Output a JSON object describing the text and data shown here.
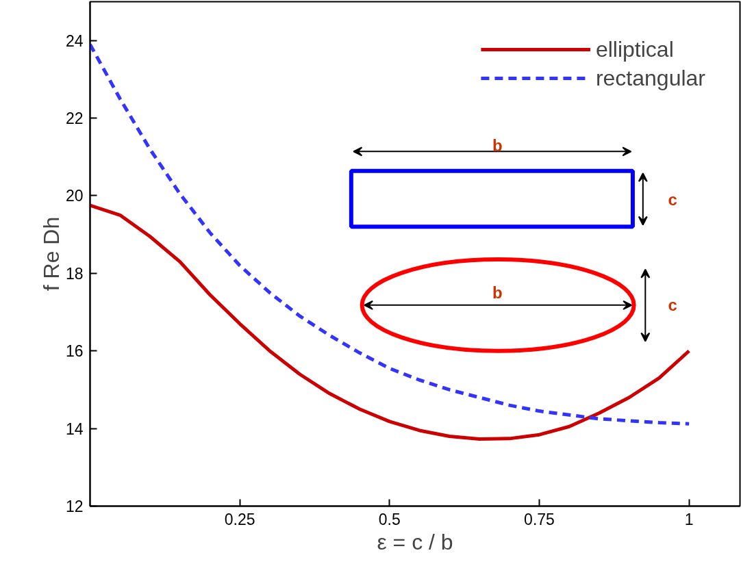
{
  "chart_data": {
    "type": "line",
    "xlabel": "ε = c / b",
    "ylabel": "f Re Dh",
    "x": [
      0,
      0.05,
      0.1,
      0.15,
      0.2,
      0.25,
      0.3,
      0.35,
      0.4,
      0.45,
      0.5,
      0.55,
      0.6,
      0.65,
      0.7,
      0.75,
      0.8,
      0.85,
      0.9,
      0.95,
      1.0
    ],
    "series": [
      {
        "name": "elliptical",
        "color": "#cc0000",
        "line_style": "solid",
        "values": [
          19.75,
          19.5,
          18.95,
          18.3,
          17.45,
          16.7,
          16.0,
          15.4,
          14.9,
          14.5,
          14.18,
          13.95,
          13.8,
          13.73,
          13.74,
          13.84,
          14.05,
          14.4,
          14.8,
          15.3,
          16.0
        ]
      },
      {
        "name": "rectangular",
        "color": "#3333ff",
        "line_style": "dashed",
        "values": [
          23.9,
          22.5,
          21.2,
          20.05,
          19.05,
          18.2,
          17.5,
          16.9,
          16.4,
          15.95,
          15.55,
          15.25,
          15.0,
          14.8,
          14.6,
          14.45,
          14.35,
          14.25,
          14.2,
          14.15,
          14.12
        ]
      }
    ],
    "xlim": [
      0,
      1.085
    ],
    "ylim": [
      12,
      25
    ],
    "xticks": [
      0.25,
      0.5,
      0.75,
      1
    ],
    "yticks": [
      12,
      14,
      16,
      18,
      20,
      22,
      24
    ],
    "grid": false,
    "legend": "top right",
    "marker": "none",
    "annotations": [
      "b",
      "c",
      "b",
      "c"
    ]
  }
}
